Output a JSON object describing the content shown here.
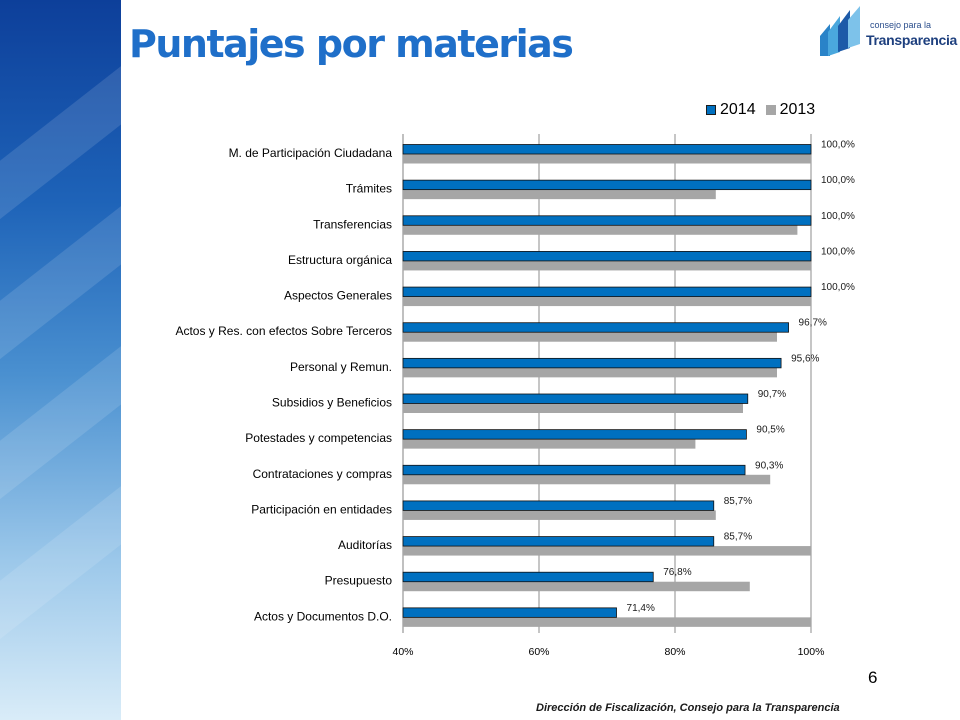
{
  "header": {
    "title": "Puntajes por materias",
    "logo_small": "consejo para la",
    "logo_big": "Transparencia"
  },
  "colors": {
    "series_2014": "#0070c0",
    "series_2013": "#a6a6a6",
    "title": "#1f6fc9",
    "gridline": "#8c8c8c"
  },
  "chart_data": {
    "type": "bar",
    "orientation": "horizontal",
    "categories": [
      "M. de Participación Ciudadana",
      "Trámites",
      "Transferencias",
      "Estructura orgánica",
      "Aspectos Generales",
      "Actos y Res. con efectos Sobre Terceros",
      "Personal y Remun.",
      "Subsidios y Beneficios",
      "Potestades y competencias",
      "Contrataciones y compras",
      "Participación en entidades",
      "Auditorías",
      "Presupuesto",
      "Actos y Documentos D.O."
    ],
    "series": [
      {
        "name": "2014",
        "values": [
          100,
          100,
          100,
          100,
          100,
          96.7,
          95.6,
          90.7,
          90.5,
          90.3,
          85.7,
          85.7,
          76.8,
          71.4
        ],
        "labels": [
          "100,0%",
          "100,0%",
          "100,0%",
          "100,0%",
          "100,0%",
          "96,7%",
          "95,6%",
          "90,7%",
          "90,5%",
          "90,3%",
          "85,7%",
          "85,7%",
          "76,8%",
          "71,4%"
        ]
      },
      {
        "name": "2013",
        "values": [
          100,
          86,
          98,
          100,
          100,
          95,
          95,
          90,
          83,
          94,
          86,
          100,
          91,
          100
        ]
      }
    ],
    "xlim": [
      40,
      100
    ],
    "xticks": [
      40,
      60,
      80,
      100
    ],
    "xtick_labels": [
      "40%",
      "60%",
      "80%",
      "100%"
    ],
    "grid": true,
    "legend_position": "top-right"
  },
  "page_number": "6",
  "footer": "Dirección de Fiscalización, Consejo para la Transparencia"
}
